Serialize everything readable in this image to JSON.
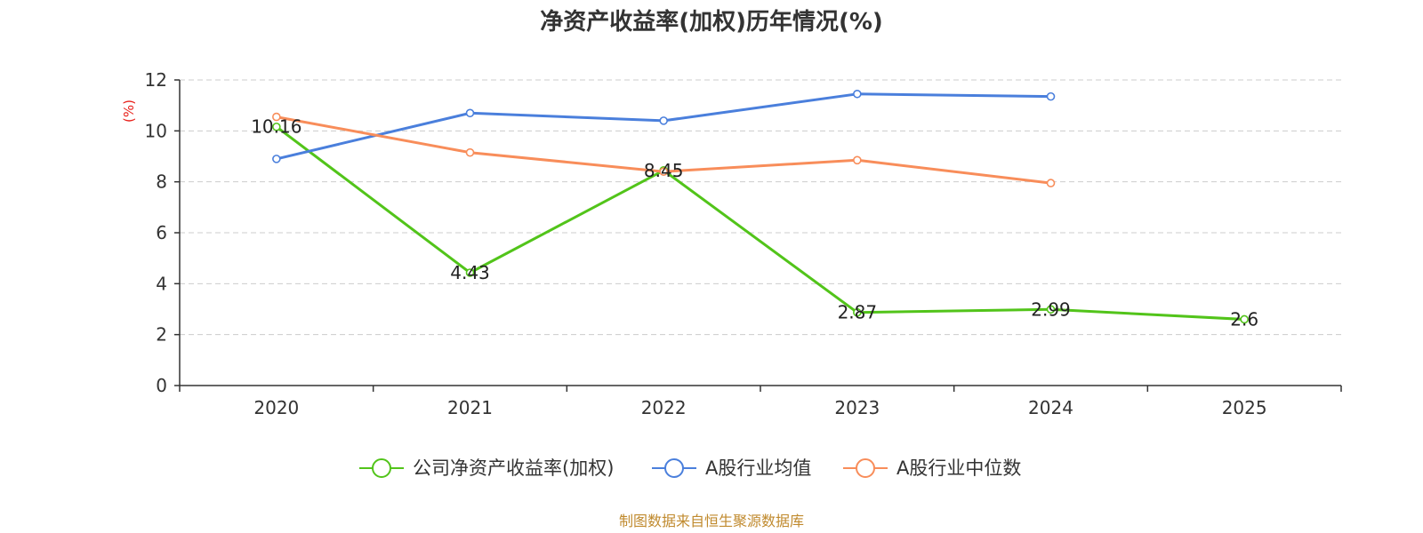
{
  "colors": {
    "series_company": "#52c41a",
    "series_avg": "#4a7fdc",
    "series_median": "#f88d5a",
    "grid": "#cccccc",
    "axis": "#333333",
    "unit": "#e8201a",
    "source": "#c08a2e"
  },
  "chart_data": {
    "type": "line",
    "title": "净资产收益率(加权)历年情况(%)",
    "ylabel": "(%)",
    "xlabel": "",
    "ylim": [
      0,
      12
    ],
    "yticks": [
      0,
      2,
      4,
      6,
      8,
      10,
      12
    ],
    "grid": true,
    "categories": [
      "2020",
      "2021",
      "2022",
      "2023",
      "2024",
      "2025"
    ],
    "series": [
      {
        "name": "公司净资产收益率(加权)",
        "color_key": "series_company",
        "values": [
          10.16,
          4.43,
          8.45,
          2.87,
          2.99,
          2.6
        ],
        "labels": [
          "10.16",
          "4.43",
          "8.45",
          "2.87",
          "2.99",
          "2.6"
        ]
      },
      {
        "name": "A股行业均值",
        "color_key": "series_avg",
        "values": [
          8.9,
          10.7,
          10.4,
          11.45,
          11.35,
          null
        ]
      },
      {
        "name": "A股行业中位数",
        "color_key": "series_median",
        "values": [
          10.55,
          9.15,
          8.4,
          8.85,
          7.95,
          null
        ]
      }
    ],
    "legend_position": "bottom-center"
  },
  "source_text": "制图数据来自恒生聚源数据库"
}
